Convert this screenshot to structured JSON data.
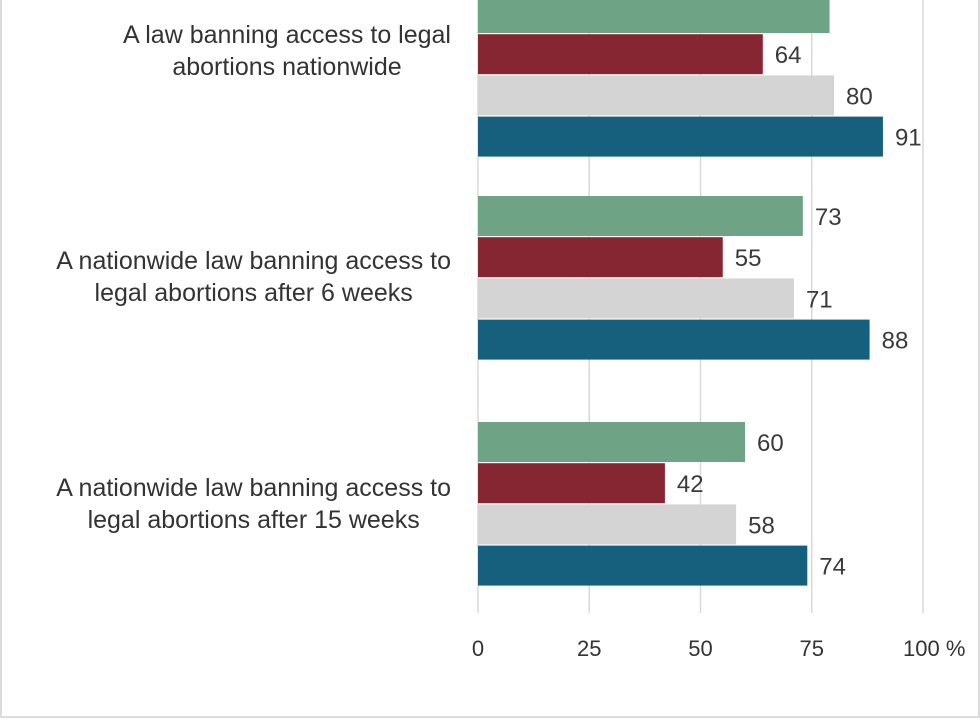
{
  "chart_data": {
    "type": "bar",
    "orientation": "horizontal",
    "categories": [
      [
        "A law banning access to legal",
        "abortions nationwide"
      ],
      [
        "A nationwide law banning access to",
        "legal abortions after 6 weeks"
      ],
      [
        "A nationwide law banning access to",
        "legal abortions after 15 weeks"
      ]
    ],
    "series": [
      {
        "values": [
          79,
          73,
          60
        ],
        "color": "#6fa385"
      },
      {
        "values": [
          64,
          55,
          42
        ],
        "color": "#862633"
      },
      {
        "values": [
          80,
          71,
          58
        ],
        "color": "#d4d4d4"
      },
      {
        "values": [
          91,
          88,
          74
        ],
        "color": "#17607d"
      }
    ],
    "value_labels": [
      [
        null,
        "73",
        "60"
      ],
      [
        "64",
        "55",
        "42"
      ],
      [
        "80",
        "71",
        "58"
      ],
      [
        "91",
        "88",
        "74"
      ]
    ],
    "xlim": [
      0,
      100
    ],
    "xticks": [
      "0",
      "25",
      "50",
      "75",
      "100 %"
    ],
    "xtick_values": [
      0,
      25,
      50,
      75,
      100
    ],
    "grid": true,
    "legend": "none"
  }
}
